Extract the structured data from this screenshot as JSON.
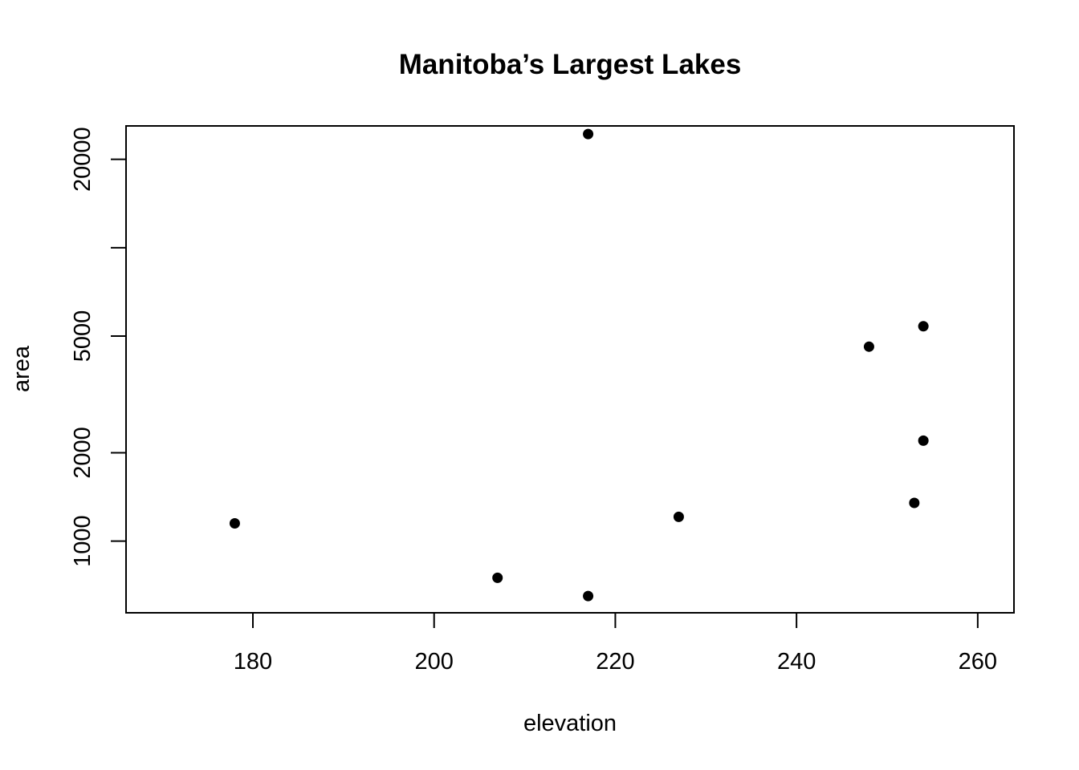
{
  "chart_data": {
    "type": "scatter",
    "title": "Manitoba’s Largest Lakes",
    "xlabel": "elevation",
    "ylabel": "area",
    "xlim": [
      166,
      264
    ],
    "ylim": [
      570,
      26000
    ],
    "y_scale": "log",
    "x_ticks": [
      180,
      200,
      220,
      240,
      260
    ],
    "x_tick_labels": [
      "180",
      "200",
      "220",
      "240",
      "260"
    ],
    "y_ticks": [
      1000,
      2000,
      5000,
      10000,
      20000
    ],
    "y_tick_labels": [
      "1000",
      "2000",
      "5000",
      "",
      "20000"
    ],
    "grid": false,
    "legend": "none",
    "point_color": "#000000",
    "points": [
      {
        "x": 217,
        "y": 24400
      },
      {
        "x": 254,
        "y": 5400
      },
      {
        "x": 248,
        "y": 4600
      },
      {
        "x": 254,
        "y": 2200
      },
      {
        "x": 253,
        "y": 1350
      },
      {
        "x": 227,
        "y": 1210
      },
      {
        "x": 178,
        "y": 1150
      },
      {
        "x": 207,
        "y": 750
      },
      {
        "x": 217,
        "y": 650
      }
    ]
  }
}
